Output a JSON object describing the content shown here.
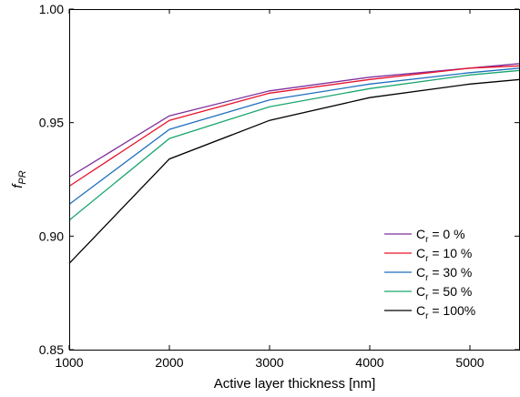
{
  "chart_data": {
    "type": "line",
    "xlabel": "Active layer thickness [nm]",
    "ylabel": {
      "main": "f",
      "sub": "PR"
    },
    "xlim": [
      1000,
      5500
    ],
    "ylim": [
      0.85,
      1.0
    ],
    "xticks": [
      1000,
      2000,
      3000,
      4000,
      5000
    ],
    "xtick_labels": [
      "1000",
      "2000",
      "3000",
      "4000",
      "5000"
    ],
    "yticks": [
      0.85,
      0.9,
      0.95,
      1.0
    ],
    "ytick_labels": [
      "0.85",
      "0.90",
      "0.95",
      "1.00"
    ],
    "grid": false,
    "legend_position": "lower-right",
    "x": [
      1000,
      2000,
      3000,
      4000,
      5000,
      5500
    ],
    "series": [
      {
        "name": "C_r = 0 %",
        "legend": {
          "main": "C",
          "sub": "r",
          "suffix": " = 0 %"
        },
        "color": "#7f2f9e",
        "values": [
          0.926,
          0.953,
          0.964,
          0.97,
          0.974,
          0.976
        ]
      },
      {
        "name": "C_r = 10 %",
        "legend": {
          "main": "C",
          "sub": "r",
          "suffix": " = 10 %"
        },
        "color": "#e8132a",
        "values": [
          0.922,
          0.951,
          0.963,
          0.969,
          0.974,
          0.975
        ]
      },
      {
        "name": "C_r = 30 %",
        "legend": {
          "main": "C",
          "sub": "r",
          "suffix": " = 30 %"
        },
        "color": "#1f6fbf",
        "values": [
          0.914,
          0.947,
          0.96,
          0.967,
          0.972,
          0.974
        ]
      },
      {
        "name": "C_r = 50 %",
        "legend": {
          "main": "C",
          "sub": "r",
          "suffix": " = 50 %"
        },
        "color": "#1aa66e",
        "values": [
          0.907,
          0.943,
          0.957,
          0.965,
          0.971,
          0.973
        ]
      },
      {
        "name": "C_r = 100%",
        "legend": {
          "main": "C",
          "sub": "r",
          "suffix": " = 100%"
        },
        "color": "#000000",
        "values": [
          0.888,
          0.934,
          0.951,
          0.961,
          0.967,
          0.969
        ]
      }
    ]
  }
}
